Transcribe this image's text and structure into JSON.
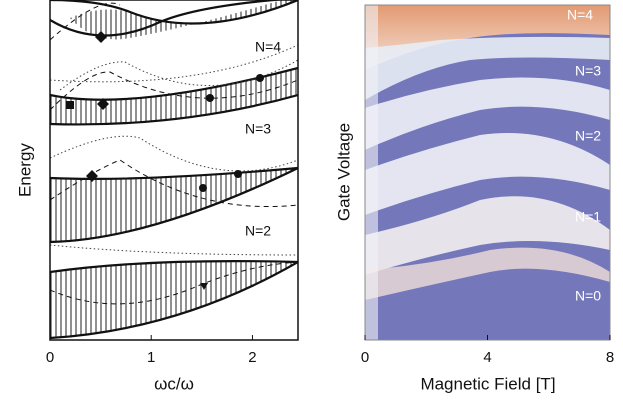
{
  "chart_data": [
    {
      "type": "line",
      "xlabel": "ωc/ω",
      "ylabel": "Energy",
      "xlim": [
        0,
        2.45
      ],
      "xticks": [
        0,
        1,
        2
      ],
      "annotations": [
        "N=4",
        "N=3",
        "N=2"
      ]
    },
    {
      "type": "heatmap",
      "xlabel": "Magnetic Field [T]",
      "ylabel": "Gate Voltage",
      "xlim": [
        0,
        8
      ],
      "xticks": [
        0,
        4,
        8
      ],
      "annotations": [
        "N=4",
        "N=3",
        "N=2",
        "N=1",
        "N=0"
      ]
    }
  ]
}
